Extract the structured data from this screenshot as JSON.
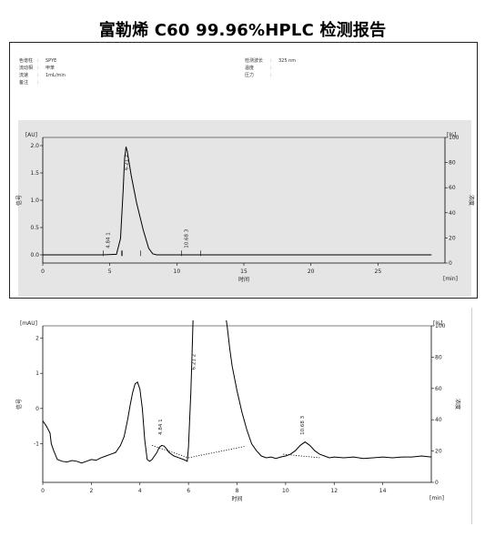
{
  "report_title": "富勒烯 C60 99.96%HPLC 检测报告",
  "metadata": {
    "left": [
      {
        "label": "色谱柱",
        "value": "SPYE"
      },
      {
        "label": "流动相",
        "value": "甲苯"
      },
      {
        "label": "流速",
        "value": "1mL/min"
      },
      {
        "label": "备注",
        "value": ""
      }
    ],
    "right": [
      {
        "label": "检测波长",
        "value": "325 nm"
      },
      {
        "label": "温度",
        "value": ""
      },
      {
        "label": "压力",
        "value": ""
      }
    ]
  },
  "chart_data": [
    {
      "type": "line",
      "background": "#e5e5e5",
      "xlabel": "时间",
      "x_unit_label": "[min]",
      "ylabel": "信号",
      "y_unit_label": "[AU]",
      "y2label": "浓度",
      "y2_unit_label": "[%]",
      "xlim": [
        0,
        30
      ],
      "ylim": [
        -0.15,
        2.15
      ],
      "y2lim": [
        0,
        100
      ],
      "xticks": [
        0,
        5,
        10,
        15,
        20,
        25
      ],
      "yticks": [
        0.0,
        0.5,
        1.0,
        1.5,
        2.0
      ],
      "y2ticks": [
        0,
        20,
        40,
        60,
        80,
        100
      ],
      "series": [
        {
          "color": "#000000",
          "x": [
            0,
            4.5,
            5.5,
            5.8,
            6.0,
            6.1,
            6.21,
            6.3,
            6.6,
            7.0,
            7.5,
            7.9,
            8.2,
            8.5,
            10,
            15,
            20,
            29
          ],
          "y": [
            0,
            0,
            0.01,
            0.3,
            1.2,
            1.75,
            1.98,
            1.9,
            1.45,
            0.95,
            0.45,
            0.12,
            0.02,
            0,
            0,
            0,
            0,
            0
          ]
        }
      ],
      "peaks": [
        {
          "number": "1",
          "time": "4.84",
          "x": 4.84
        },
        {
          "number": "2",
          "time": "6.21",
          "x": 6.21
        },
        {
          "number": "3",
          "time": "10.68",
          "x": 10.68
        }
      ]
    },
    {
      "type": "line",
      "background": "#ffffff",
      "xlabel": "时间",
      "x_unit_label": "[min]",
      "ylabel": "信号",
      "y_unit_label": "[mAU]",
      "y2label": "浓度",
      "y2_unit_label": "[%]",
      "xlim": [
        0,
        16
      ],
      "ylim": [
        -2.1,
        2.35
      ],
      "y2lim": [
        0,
        100
      ],
      "xticks": [
        0,
        2,
        4,
        6,
        8,
        10,
        12,
        14
      ],
      "yticks": [
        -1,
        0,
        1,
        2
      ],
      "y2ticks": [
        0,
        20,
        40,
        60,
        80,
        100
      ],
      "series": [
        {
          "color": "#000000",
          "x": [
            0,
            0.15,
            0.3,
            0.35,
            0.45,
            0.6,
            0.8,
            1.0,
            1.2,
            1.4,
            1.6,
            1.8,
            2.0,
            2.2,
            2.4,
            2.6,
            2.8,
            3.0,
            3.2,
            3.35,
            3.5,
            3.6,
            3.7,
            3.8,
            3.9,
            4.0,
            4.1,
            4.2,
            4.3,
            4.4,
            4.5,
            4.6,
            4.7,
            4.8,
            4.9,
            5.0,
            5.1,
            5.2,
            5.4,
            5.6,
            5.8,
            5.95,
            6.0,
            6.1,
            6.15,
            6.2,
            6.5,
            7.0,
            7.5,
            7.6,
            7.7,
            7.8,
            8.0,
            8.2,
            8.4,
            8.6,
            8.8,
            9.0,
            9.2,
            9.4,
            9.6,
            9.8,
            10.0,
            10.2,
            10.4,
            10.6,
            10.8,
            11.0,
            11.2,
            11.4,
            11.6,
            11.8,
            12.0,
            12.4,
            12.8,
            13.2,
            13.6,
            14.0,
            14.4,
            14.8,
            15.2,
            15.6,
            16.0
          ],
          "y": [
            -0.35,
            -0.5,
            -0.7,
            -1.0,
            -1.2,
            -1.45,
            -1.5,
            -1.52,
            -1.48,
            -1.5,
            -1.55,
            -1.5,
            -1.45,
            -1.47,
            -1.4,
            -1.35,
            -1.3,
            -1.25,
            -1.05,
            -0.8,
            -0.3,
            0.1,
            0.45,
            0.7,
            0.75,
            0.55,
            0.0,
            -0.9,
            -1.45,
            -1.5,
            -1.45,
            -1.35,
            -1.25,
            -1.1,
            -1.05,
            -1.07,
            -1.15,
            -1.25,
            -1.35,
            -1.4,
            -1.45,
            -1.5,
            -1.1,
            0.5,
            1.6,
            2.8,
            2.8,
            2.8,
            2.8,
            2.3,
            1.7,
            1.2,
            0.5,
            -0.1,
            -0.6,
            -1.0,
            -1.2,
            -1.35,
            -1.4,
            -1.38,
            -1.42,
            -1.38,
            -1.35,
            -1.3,
            -1.2,
            -1.05,
            -0.95,
            -1.05,
            -1.2,
            -1.3,
            -1.35,
            -1.4,
            -1.38,
            -1.4,
            -1.38,
            -1.42,
            -1.4,
            -1.38,
            -1.4,
            -1.38,
            -1.38,
            -1.35,
            -1.38
          ]
        }
      ],
      "baseline_segments": [
        {
          "x": [
            4.5,
            6.0
          ],
          "y": [
            -1.05,
            -1.4
          ]
        },
        {
          "x": [
            6.0,
            8.3
          ],
          "y": [
            -1.4,
            -1.08
          ]
        },
        {
          "x": [
            9.9,
            11.4
          ],
          "y": [
            -1.3,
            -1.4
          ]
        }
      ],
      "peaks": [
        {
          "number": "1",
          "time": "4.84",
          "x": 4.84
        },
        {
          "number": "2",
          "time": "6.21",
          "x": 6.21
        },
        {
          "number": "3",
          "time": "10.68",
          "x": 10.68
        }
      ]
    }
  ]
}
